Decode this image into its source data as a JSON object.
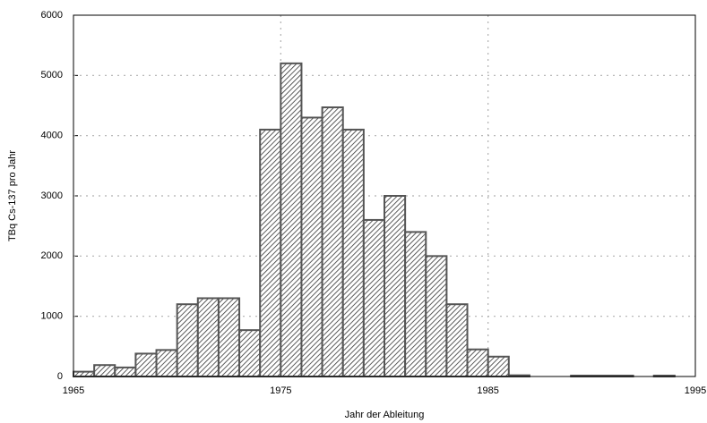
{
  "chart_data": {
    "type": "histogram",
    "xlabel": "Jahr der Ableitung",
    "ylabel": "TBq Cs-137 pro Jahr",
    "bins": [
      1965,
      1966,
      1967,
      1968,
      1969,
      1970,
      1971,
      1972,
      1973,
      1974,
      1975,
      1976,
      1977,
      1978,
      1979,
      1980,
      1981,
      1982,
      1983,
      1984,
      1985,
      1986,
      1987,
      1988,
      1989,
      1990,
      1991,
      1992,
      1993,
      1994,
      1995
    ],
    "values": [
      80,
      190,
      150,
      380,
      440,
      1200,
      1300,
      1300,
      770,
      4100,
      5200,
      4300,
      4470,
      4100,
      2600,
      3000,
      2400,
      2000,
      1200,
      450,
      330,
      20,
      0,
      0,
      15,
      15,
      15,
      0,
      15,
      0
    ],
    "color": "#555555",
    "xlim": [
      1965,
      1995
    ],
    "xticks": [
      1965,
      1975,
      1985,
      1995
    ],
    "ylim": [
      0,
      6000
    ],
    "yticks": [
      0,
      1000,
      2000,
      3000,
      4000,
      5000,
      6000
    ],
    "grid": true
  }
}
